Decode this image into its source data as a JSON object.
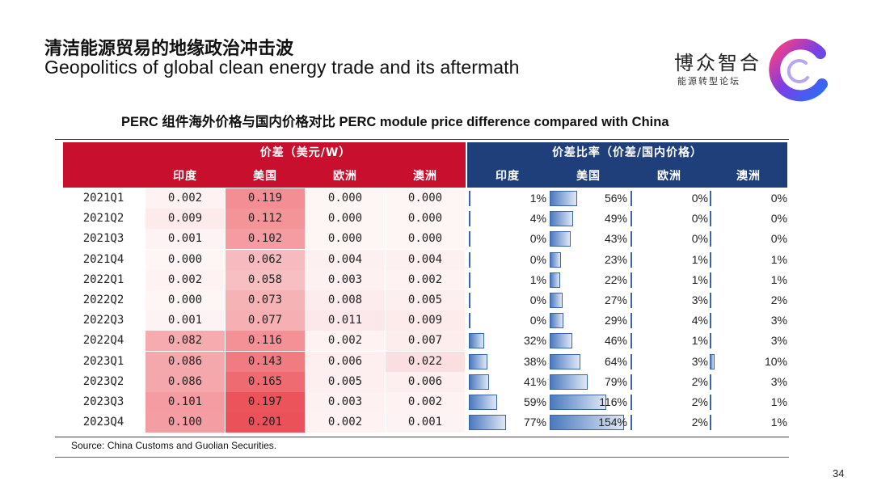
{
  "slide": {
    "title_zh": "清洁能源贸易的地缘政治冲击波",
    "title_en": "Geopolitics of global clean energy trade and its aftermath",
    "brand_name": "博众智合",
    "brand_sub": "能源转型论坛",
    "source": "Source: China Customs and Guolian Securities.",
    "page_number": "34"
  },
  "colors": {
    "header_red": "#c8102e",
    "header_blue": "#1f3f7a",
    "heat_red": "#e8323c",
    "bar_blue": "#4a79bf",
    "logo_gradient": [
      "#ff3d7f",
      "#7b3fe4",
      "#2b6df5"
    ]
  },
  "chart_data": {
    "type": "table",
    "title": "PERC 组件海外价格与国内价格对比   PERC module price difference compared with China",
    "group_headers": [
      "价差（美元/W）",
      "价差比率（价差/国内价格）"
    ],
    "columns": [
      "印度",
      "美国",
      "欧洲",
      "澳洲"
    ],
    "rows": [
      "2021Q1",
      "2021Q2",
      "2021Q3",
      "2021Q4",
      "2022Q1",
      "2022Q2",
      "2022Q3",
      "2022Q4",
      "2023Q1",
      "2023Q2",
      "2023Q3",
      "2023Q4"
    ],
    "price_diff_usd_per_w": [
      [
        "0.002",
        "0.119",
        "0.000",
        "0.000"
      ],
      [
        "0.009",
        "0.112",
        "0.000",
        "0.000"
      ],
      [
        "0.001",
        "0.102",
        "0.000",
        "0.000"
      ],
      [
        "0.000",
        "0.062",
        "0.004",
        "0.004"
      ],
      [
        "0.002",
        "0.058",
        "0.003",
        "0.002"
      ],
      [
        "0.000",
        "0.073",
        "0.008",
        "0.005"
      ],
      [
        "0.001",
        "0.077",
        "0.011",
        "0.009"
      ],
      [
        "0.082",
        "0.116",
        "0.002",
        "0.007"
      ],
      [
        "0.086",
        "0.143",
        "0.006",
        "0.022"
      ],
      [
        "0.086",
        "0.165",
        "0.005",
        "0.006"
      ],
      [
        "0.101",
        "0.197",
        "0.003",
        "0.002"
      ],
      [
        "0.100",
        "0.201",
        "0.002",
        "0.001"
      ]
    ],
    "price_diff_ratio_pct": [
      [
        1,
        56,
        0,
        0
      ],
      [
        4,
        49,
        0,
        0
      ],
      [
        0,
        43,
        0,
        0
      ],
      [
        0,
        23,
        1,
        1
      ],
      [
        1,
        22,
        1,
        1
      ],
      [
        0,
        27,
        3,
        2
      ],
      [
        0,
        29,
        4,
        3
      ],
      [
        32,
        46,
        1,
        3
      ],
      [
        38,
        64,
        3,
        10
      ],
      [
        41,
        79,
        2,
        3
      ],
      [
        59,
        116,
        2,
        1
      ],
      [
        77,
        154,
        2,
        1
      ]
    ]
  }
}
